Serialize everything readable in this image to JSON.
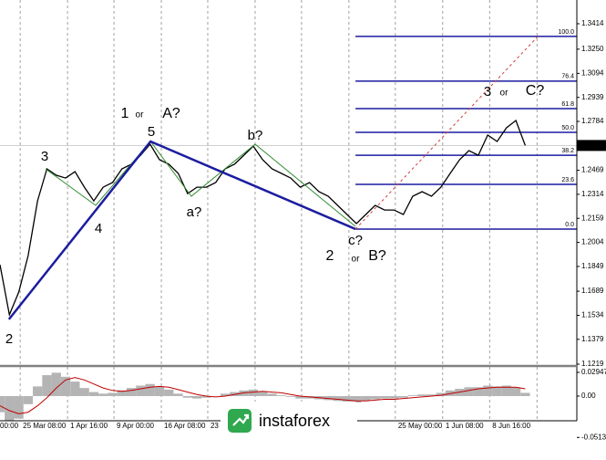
{
  "chart_data": [
    {
      "type": "line",
      "color": "#000000",
      "x": [
        0,
        2,
        4,
        6,
        8,
        10,
        12,
        14,
        16,
        18,
        20,
        22,
        24,
        26,
        28,
        30,
        32,
        34,
        36,
        38,
        40,
        42,
        44,
        46,
        48,
        50,
        52,
        54,
        56,
        58,
        60,
        62,
        64,
        66,
        68,
        70,
        72,
        74,
        76,
        78,
        80,
        82,
        84,
        86,
        88,
        90,
        92,
        94,
        96,
        98,
        100,
        102,
        104,
        106,
        108,
        110,
        112
      ],
      "values": [
        1.186,
        1.1537,
        1.1684,
        1.1919,
        1.2272,
        1.2478,
        1.2437,
        1.2419,
        1.246,
        1.236,
        1.2272,
        1.236,
        1.239,
        1.2478,
        1.2508,
        1.2566,
        1.2637,
        1.2537,
        1.2508,
        1.2449,
        1.2319,
        1.236,
        1.236,
        1.239,
        1.2478,
        1.2508,
        1.2566,
        1.2625,
        1.2537,
        1.2478,
        1.2449,
        1.2419,
        1.236,
        1.239,
        1.2331,
        1.2302,
        1.2243,
        1.2184,
        1.2125,
        1.2184,
        1.2243,
        1.2213,
        1.2213,
        1.2184,
        1.2302,
        1.2331,
        1.2302,
        1.236,
        1.2449,
        1.2537,
        1.2596,
        1.2566,
        1.2696,
        1.2655,
        1.2743,
        1.279,
        1.2629
      ],
      "xlim": [
        0,
        123
      ],
      "ylim": [
        1.1213,
        1.3567
      ],
      "xticks": [
        {
          "value": -5.7,
          "label": "00:00"
        },
        {
          "value": 4.3,
          "label": "25 Mar 08:00"
        },
        {
          "value": 14.4,
          "label": "1 Apr 16:00"
        },
        {
          "value": 24.3,
          "label": "9 Apr 00:00"
        },
        {
          "value": 34.4,
          "label": "16 Apr 08:00"
        },
        {
          "value": 44.3,
          "label": "23"
        },
        {
          "value": 54.4,
          "label": null
        },
        {
          "value": 64.3,
          "label": null
        },
        {
          "value": 74.4,
          "label": null
        },
        {
          "value": 84.3,
          "label": "25 May 00:00"
        },
        {
          "value": 94.4,
          "label": "1 Jun 08:00"
        },
        {
          "value": 104.4,
          "label": "8 Jun 16:00"
        },
        {
          "value": 114.5,
          "label": null
        }
      ],
      "yticks": [
        1.3414,
        {
          "value": 1.325,
          "label": "1.3250"
        },
        1.3094,
        1.2939,
        1.2784,
        1.2469,
        1.2314,
        1.2159,
        1.2004,
        1.1849,
        1.1689,
        1.1534,
        1.1379,
        1.1219
      ],
      "last_price": 1.2629,
      "fib_start": 75.8,
      "fib_levels": [
        {
          "label": "0.0",
          "value": 1.209
        },
        {
          "label": "23.6",
          "value": 1.2378
        },
        {
          "label": "38.2",
          "value": 1.2566
        },
        {
          "label": "50.0",
          "value": 1.2714
        },
        {
          "label": "61.8",
          "value": 1.2867
        },
        {
          "label": "76.4",
          "value": 1.3044
        },
        {
          "label": "100.0",
          "value": 1.3332
        }
      ],
      "wave_lines": [
        {
          "color": "#2e8b2e",
          "width": 1,
          "dashed": false,
          "points": [
            [
              9.7,
              1.2478
            ],
            [
              20.4,
              1.2243
            ],
            [
              32.1,
              1.2655
            ],
            [
              40.8,
              1.2302
            ],
            [
              54.4,
              1.2637
            ],
            [
              75.8,
              1.2107
            ]
          ]
        },
        {
          "color": "#1c1ca0",
          "width": 2.5,
          "dashed": false,
          "points": [
            [
              1.9,
              1.1508
            ],
            [
              32.1,
              1.2655
            ],
            [
              75.8,
              1.209
            ]
          ]
        },
        {
          "color": "#d04040",
          "width": 1,
          "dashed": true,
          "points": [
            [
              75.8,
              1.209
            ],
            [
              114.7,
              1.3332
            ]
          ]
        }
      ],
      "wave_labels": [
        {
          "text": "2",
          "color": "#2e8b2e"
        },
        {
          "text": "3",
          "color": "#2e8b2e"
        },
        {
          "text": "4",
          "color": "#2e8b2e"
        },
        {
          "text": "5",
          "color": "#2e8b2e"
        },
        {
          "text": "a?",
          "color": "#2e8b2e"
        },
        {
          "text": "b?",
          "color": "#2e8b2e"
        },
        {
          "text": "c?",
          "color": "#2e8b2e"
        },
        {
          "text": "1",
          "color": "#1c1ca0"
        },
        {
          "text": "or",
          "color": "#1c1ca0"
        },
        {
          "text": "A?",
          "color": "#1c1ca0"
        },
        {
          "text": "2",
          "color": "#1c1ca0"
        },
        {
          "text": "or",
          "color": "#1c1ca0"
        },
        {
          "text": "B?",
          "color": "#1c1ca0"
        },
        {
          "text": "3",
          "color": "#1c1ca0"
        },
        {
          "text": "or",
          "color": "#1c1ca0"
        },
        {
          "text": "C?",
          "color": "#1c1ca0"
        }
      ],
      "logo": "instaforex"
    },
    {
      "type": "bar",
      "color": "#b4b4b4",
      "signal_color": "#c00000",
      "values": [
        -0.02,
        -0.03,
        -0.028,
        -0.01,
        0.012,
        0.026,
        0.029,
        0.024,
        0.018,
        0.01,
        0.005,
        0.003,
        0.004,
        0.007,
        0.01,
        0.013,
        0.015,
        0.012,
        0.008,
        0.003,
        -0.002,
        -0.003,
        -0.002,
        0.0,
        0.003,
        0.005,
        0.007,
        0.008,
        0.006,
        0.003,
        0.001,
        -0.001,
        -0.003,
        -0.003,
        -0.004,
        -0.005,
        -0.006,
        -0.007,
        -0.008,
        -0.006,
        -0.004,
        -0.003,
        -0.003,
        -0.002,
        0.001,
        0.002,
        0.002,
        0.004,
        0.007,
        0.009,
        0.011,
        0.011,
        0.013,
        0.012,
        0.013,
        0.011,
        0.004
      ],
      "signal": [
        -0.012,
        -0.018,
        -0.022,
        -0.02,
        -0.012,
        -0.002,
        0.01,
        0.02,
        0.023,
        0.02,
        0.015,
        0.01,
        0.007,
        0.006,
        0.007,
        0.009,
        0.011,
        0.012,
        0.011,
        0.008,
        0.005,
        0.002,
        0.0,
        -0.001,
        0.0,
        0.002,
        0.004,
        0.005,
        0.006,
        0.005,
        0.004,
        0.002,
        0.0,
        -0.001,
        -0.002,
        -0.003,
        -0.004,
        -0.005,
        -0.006,
        -0.006,
        -0.005,
        -0.004,
        -0.004,
        -0.003,
        -0.002,
        -0.001,
        0.0,
        0.001,
        0.003,
        0.005,
        0.007,
        0.009,
        0.01,
        0.011,
        0.011,
        0.011,
        0.009
      ],
      "ylim": [
        -0.0295,
        0.0351
      ],
      "yticks": [
        0.02947,
        {
          "value": 0,
          "label": "0.00"
        },
        -0.05134
      ]
    }
  ]
}
